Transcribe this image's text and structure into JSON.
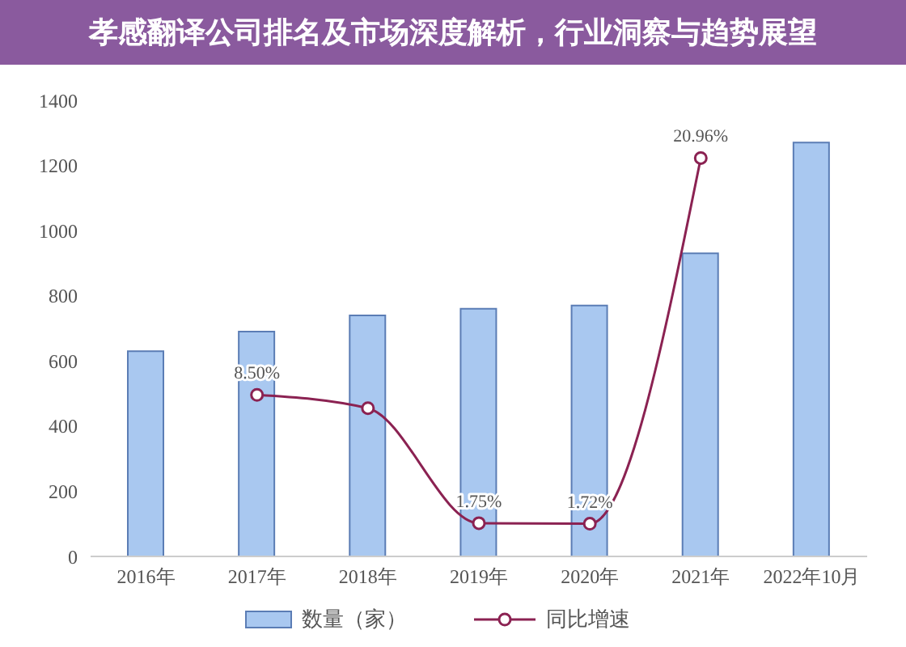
{
  "chart_data": {
    "type": "bar",
    "title": "孝感翻译公司排名及市场深度解析，行业洞察与趋势展望",
    "categories": [
      "2016年",
      "2017年",
      "2018年",
      "2019年",
      "2020年",
      "2021年",
      "2022年10月"
    ],
    "series": [
      {
        "name": "数量（家）",
        "color": "#a9c8f0",
        "values": [
          630,
          690,
          740,
          760,
          770,
          930,
          1270
        ]
      },
      {
        "name": "同比增速",
        "type": "line",
        "axis": "y2",
        "color": "#8b2252",
        "values": [
          null,
          8.5,
          7.8,
          1.75,
          1.72,
          20.96,
          null
        ],
        "value_labels": [
          null,
          "8.50%",
          null,
          "1.75%",
          "1.72%",
          "20.96%",
          null
        ]
      }
    ],
    "ylim": [
      0,
      1400
    ],
    "yticks": [
      0,
      200,
      400,
      600,
      800,
      1000,
      1200,
      1400
    ],
    "legend": "bottom",
    "marker": "circle"
  }
}
